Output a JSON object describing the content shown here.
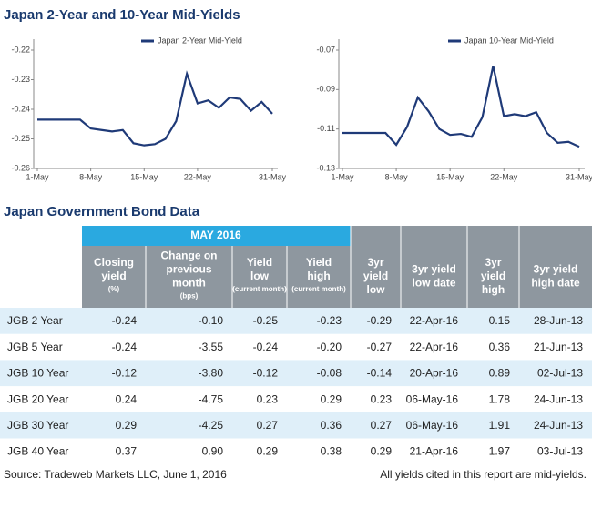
{
  "title": "Japan 2-Year and 10-Year Mid-Yields",
  "chart_data": [
    {
      "type": "line",
      "categories": [
        "1-May",
        null,
        null,
        null,
        null,
        "8-May",
        null,
        null,
        null,
        null,
        "15-May",
        null,
        null,
        null,
        null,
        "22-May",
        null,
        null,
        null,
        null,
        null,
        null,
        "31-May"
      ],
      "series": [
        {
          "name": "Japan 2-Year Mid-Yield",
          "color": "#1f3a78",
          "values": [
            -0.2435,
            -0.2435,
            -0.2435,
            -0.2435,
            -0.2435,
            -0.2465,
            -0.247,
            -0.2475,
            -0.247,
            -0.2515,
            -0.2522,
            -0.2518,
            -0.25,
            -0.244,
            -0.228,
            -0.238,
            -0.237,
            -0.2395,
            -0.236,
            -0.2365,
            -0.2405,
            -0.2375,
            -0.2415
          ]
        }
      ],
      "ylim": [
        -0.26,
        -0.22
      ],
      "yticks": [
        -0.26,
        -0.25,
        -0.24,
        -0.23,
        -0.22
      ],
      "legend": "top-right"
    },
    {
      "type": "line",
      "categories": [
        "1-May",
        null,
        null,
        null,
        null,
        "8-May",
        null,
        null,
        null,
        null,
        "15-May",
        null,
        null,
        null,
        null,
        "22-May",
        null,
        null,
        null,
        null,
        null,
        null,
        "31-May"
      ],
      "series": [
        {
          "name": "Japan 10-Year Mid-Yield",
          "color": "#1f3a78",
          "values": [
            -0.112,
            -0.112,
            -0.112,
            -0.112,
            -0.112,
            -0.118,
            -0.109,
            -0.094,
            -0.101,
            -0.11,
            -0.113,
            -0.1125,
            -0.114,
            -0.104,
            -0.078,
            -0.1035,
            -0.1025,
            -0.1035,
            -0.1015,
            -0.112,
            -0.117,
            -0.1165,
            -0.119
          ]
        }
      ],
      "ylim": [
        -0.13,
        -0.07
      ],
      "yticks": [
        -0.13,
        -0.11,
        -0.09,
        -0.07
      ],
      "legend": "top-right"
    }
  ],
  "table_title": "Japan Government Bond Data",
  "table": {
    "group_header": "MAY 2016",
    "columns": [
      {
        "label": "Closing yield",
        "note": "(%)"
      },
      {
        "label": "Change on previous month",
        "note": "(bps)"
      },
      {
        "label": "Yield low",
        "note": "(current month)"
      },
      {
        "label": "Yield high",
        "note": "(current month)"
      },
      {
        "label": "3yr yield low"
      },
      {
        "label": "3yr yield low date"
      },
      {
        "label": "3yr yield high"
      },
      {
        "label": "3yr yield high date"
      }
    ],
    "rows": [
      [
        "JGB 2 Year",
        "-0.24",
        "-0.10",
        "-0.25",
        "-0.23",
        "-0.29",
        "22-Apr-16",
        "0.15",
        "28-Jun-13"
      ],
      [
        "JGB 5 Year",
        "-0.24",
        "-3.55",
        "-0.24",
        "-0.20",
        "-0.27",
        "22-Apr-16",
        "0.36",
        "21-Jun-13"
      ],
      [
        "JGB 10 Year",
        "-0.12",
        "-3.80",
        "-0.12",
        "-0.08",
        "-0.14",
        "20-Apr-16",
        "0.89",
        "02-Jul-13"
      ],
      [
        "JGB 20 Year",
        "0.24",
        "-4.75",
        "0.23",
        "0.29",
        "0.23",
        "06-May-16",
        "1.78",
        "24-Jun-13"
      ],
      [
        "JGB 30 Year",
        "0.29",
        "-4.25",
        "0.27",
        "0.36",
        "0.27",
        "06-May-16",
        "1.91",
        "24-Jun-13"
      ],
      [
        "JGB 40 Year",
        "0.37",
        "0.90",
        "0.29",
        "0.38",
        "0.29",
        "21-Apr-16",
        "1.97",
        "03-Jul-13"
      ]
    ]
  },
  "footer": {
    "source": "Source: Tradeweb Markets LLC, June 1, 2016",
    "note": "All yields cited in this report are mid-yields."
  }
}
